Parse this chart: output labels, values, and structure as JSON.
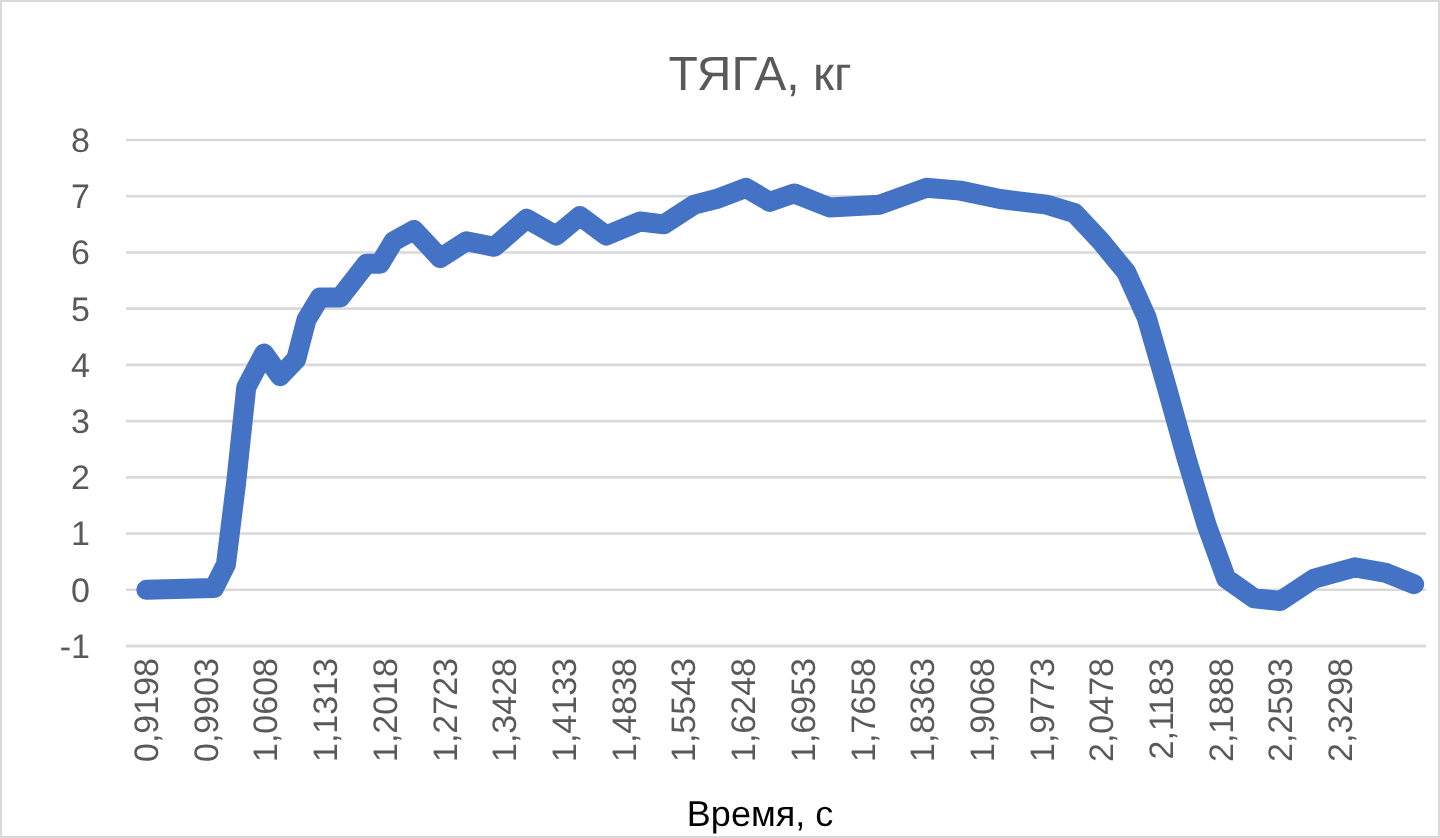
{
  "chart_data": {
    "type": "line",
    "title": "ТЯГА, кг",
    "xlabel": "Время, с",
    "x": [
      0.92,
      1.0,
      1.014,
      1.026,
      1.038,
      1.059,
      1.078,
      1.097,
      1.109,
      1.125,
      1.149,
      1.18,
      1.196,
      1.212,
      1.236,
      1.267,
      1.298,
      1.331,
      1.369,
      1.404,
      1.432,
      1.463,
      1.503,
      1.531,
      1.567,
      1.593,
      1.628,
      1.656,
      1.685,
      1.727,
      1.786,
      1.841,
      1.881,
      1.928,
      1.983,
      2.016,
      2.047,
      2.077,
      2.101,
      2.124,
      2.148,
      2.172,
      2.195,
      2.228,
      2.259,
      2.299,
      2.347,
      2.384,
      2.417
    ],
    "series": [
      {
        "color": "#4472c4",
        "values": [
          0,
          0.03,
          0.45,
          1.9,
          3.6,
          4.2,
          3.8,
          4.1,
          4.8,
          5.2,
          5.2,
          5.8,
          5.8,
          6.2,
          6.4,
          5.9,
          6.2,
          6.1,
          6.6,
          6.3,
          6.65,
          6.3,
          6.55,
          6.5,
          6.85,
          6.95,
          7.15,
          6.9,
          7.05,
          6.8,
          6.85,
          7.15,
          7.1,
          6.95,
          6.85,
          6.7,
          6.2,
          5.65,
          4.85,
          3.65,
          2.35,
          1.15,
          0.2,
          -0.15,
          -0.2,
          0.2,
          0.4,
          0.3,
          0.1
        ]
      }
    ],
    "xlim": [
      0.896,
      2.431
    ],
    "xticks": [
      {
        "value": 0.9198,
        "label": "0,9198"
      },
      {
        "value": 0.9903,
        "label": "0,9903"
      },
      {
        "value": 1.0608,
        "label": "1,0608"
      },
      {
        "value": 1.1313,
        "label": "1,1313"
      },
      {
        "value": 1.2018,
        "label": "1,2018"
      },
      {
        "value": 1.2723,
        "label": "1,2723"
      },
      {
        "value": 1.3428,
        "label": "1,3428"
      },
      {
        "value": 1.4133,
        "label": "1,4133"
      },
      {
        "value": 1.4838,
        "label": "1,4838"
      },
      {
        "value": 1.5543,
        "label": "1,5543"
      },
      {
        "value": 1.6248,
        "label": "1,6248"
      },
      {
        "value": 1.6953,
        "label": "1,6953"
      },
      {
        "value": 1.7658,
        "label": "1,7658"
      },
      {
        "value": 1.8363,
        "label": "1,8363"
      },
      {
        "value": 1.9068,
        "label": "1,9068"
      },
      {
        "value": 1.9773,
        "label": "1,9773"
      },
      {
        "value": 2.0478,
        "label": "2,0478"
      },
      {
        "value": 2.1183,
        "label": "2,1183"
      },
      {
        "value": 2.1888,
        "label": "2,1888"
      },
      {
        "value": 2.2593,
        "label": "2,2593"
      },
      {
        "value": 2.3298,
        "label": "2,3298"
      }
    ],
    "ylim": [
      -1,
      8
    ],
    "yticks": [
      -1,
      0,
      1,
      2,
      3,
      4,
      5,
      6,
      7,
      8
    ],
    "grid": "y",
    "line_style": "solid"
  }
}
